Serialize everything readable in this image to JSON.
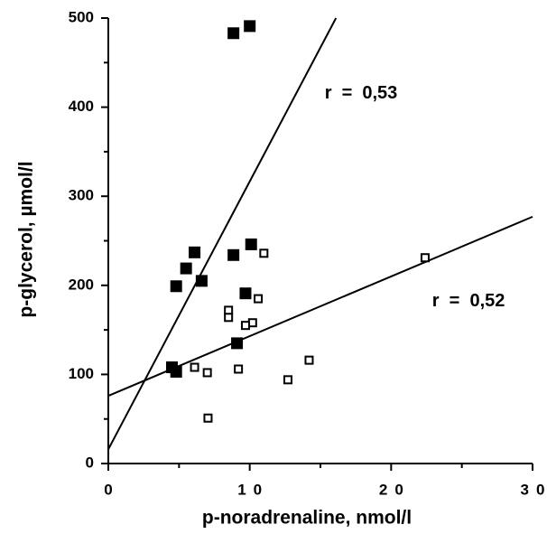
{
  "chart_data": {
    "type": "scatter",
    "xlabel": "p-noradrenaline,   nmol/l",
    "ylabel": "p-glycerol,   µmol/l",
    "xlim": [
      0,
      30
    ],
    "ylim": [
      0,
      500
    ],
    "xticks": [
      0,
      10,
      20,
      30
    ],
    "yticks": [
      0,
      100,
      200,
      300,
      400,
      500
    ],
    "xminor": [
      5,
      15,
      25
    ],
    "yminor": [
      50,
      150,
      250,
      350,
      450
    ],
    "series": [
      {
        "color": "#000000",
        "filled": true,
        "x": [
          8.85,
          10.0,
          6.1,
          5.5,
          4.8,
          6.6,
          8.85,
          10.1,
          9.7,
          9.1,
          4.5,
          4.8
        ],
        "values": [
          483,
          491,
          237,
          219,
          199,
          205,
          234,
          246,
          191,
          135,
          108,
          103
        ]
      },
      {
        "color": "#000000",
        "filled": false,
        "x": [
          11.0,
          10.6,
          10.2,
          9.7,
          8.5,
          8.5,
          6.1,
          7.0,
          9.2,
          12.7,
          14.2,
          7.05,
          22.4
        ],
        "values": [
          236,
          185,
          158,
          155,
          172,
          164,
          108,
          102,
          106,
          94,
          116,
          51,
          231
        ]
      }
    ],
    "lines": [
      {
        "x": [
          0,
          16.1
        ],
        "values": [
          16,
          500
        ]
      },
      {
        "x": [
          0,
          30
        ],
        "values": [
          76,
          277
        ]
      }
    ],
    "annotations": [
      {
        "text": "r  =  0,53",
        "x": 15.3,
        "y": 415
      },
      {
        "text": "r  =  0,52",
        "x": 22.9,
        "y": 182
      }
    ]
  }
}
